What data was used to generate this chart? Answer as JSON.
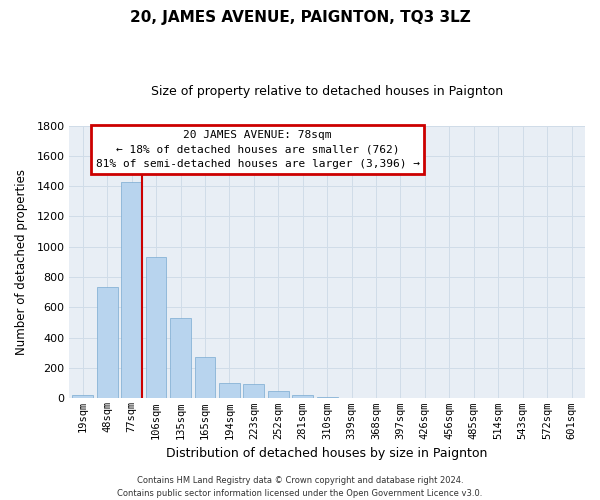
{
  "title": "20, JAMES AVENUE, PAIGNTON, TQ3 3LZ",
  "subtitle": "Size of property relative to detached houses in Paignton",
  "xlabel": "Distribution of detached houses by size in Paignton",
  "ylabel": "Number of detached properties",
  "bar_labels": [
    "19sqm",
    "48sqm",
    "77sqm",
    "106sqm",
    "135sqm",
    "165sqm",
    "194sqm",
    "223sqm",
    "252sqm",
    "281sqm",
    "310sqm",
    "339sqm",
    "368sqm",
    "397sqm",
    "426sqm",
    "456sqm",
    "485sqm",
    "514sqm",
    "543sqm",
    "572sqm",
    "601sqm"
  ],
  "bar_values": [
    20,
    735,
    1430,
    935,
    530,
    270,
    100,
    93,
    50,
    25,
    10,
    5,
    2,
    1,
    0,
    0,
    0,
    0,
    0,
    0,
    0
  ],
  "bar_color": "#b8d4ee",
  "property_line_index": 2,
  "annotation_text": "20 JAMES AVENUE: 78sqm\n← 18% of detached houses are smaller (762)\n81% of semi-detached houses are larger (3,396) →",
  "annotation_box_color": "#ffffff",
  "annotation_box_edge": "#cc0000",
  "line_color": "#cc0000",
  "footer1": "Contains HM Land Registry data © Crown copyright and database right 2024.",
  "footer2": "Contains public sector information licensed under the Open Government Licence v3.0.",
  "ylim": [
    0,
    1800
  ],
  "yticks": [
    0,
    200,
    400,
    600,
    800,
    1000,
    1200,
    1400,
    1600,
    1800
  ],
  "grid_color": "#d0dce8",
  "bg_color": "#ffffff",
  "plot_bg_color": "#e8eef5"
}
